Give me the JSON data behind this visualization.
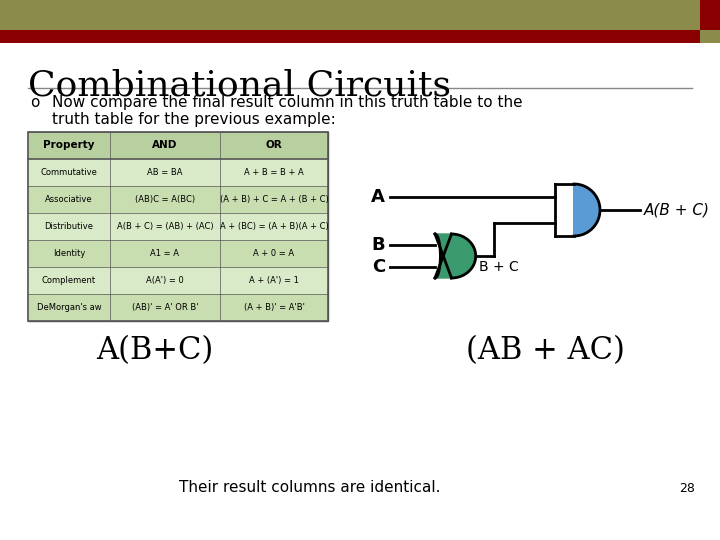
{
  "title": "Combinational Circuits",
  "bullet_text": "Now compare the final result column in this truth table to the\ntruth table for the previous example:",
  "bottom_text": "Their result columns are identical.",
  "page_number": "28",
  "expr_left": "A(B+C)",
  "expr_right": "(AB + AC)",
  "header_bg": "#8B8B4B",
  "header_bar_color": "#8B0000",
  "slide_bg": "#FFFFFF",
  "table_bg": "#D4E8C2",
  "table_border": "#555555",
  "title_color": "#000000",
  "bullet_color": "#000000",
  "and_gate_color": "#5B9BD5",
  "or_gate_color": "#3A9A6E",
  "table_data": {
    "headers": [
      "Property",
      "AND",
      "OR"
    ],
    "rows": [
      [
        "Commutative",
        "AB = BA",
        "A + B = B + A"
      ],
      [
        "Associative",
        "(AB)C = A(BC)",
        "(A + B) + C = A + (B + C)"
      ],
      [
        "Distributive",
        "A(B + C) = (AB) + (AC)",
        "A + (BC) = (A + B)(A + C)"
      ],
      [
        "Identity",
        "A1 = A",
        "A + 0 = A"
      ],
      [
        "Complement",
        "A(A') = 0",
        "A + (A') = 1"
      ],
      [
        "DeMorgan's aw",
        "(AB)' = A' OR B'",
        "(A + B)' = A'B'"
      ]
    ]
  }
}
